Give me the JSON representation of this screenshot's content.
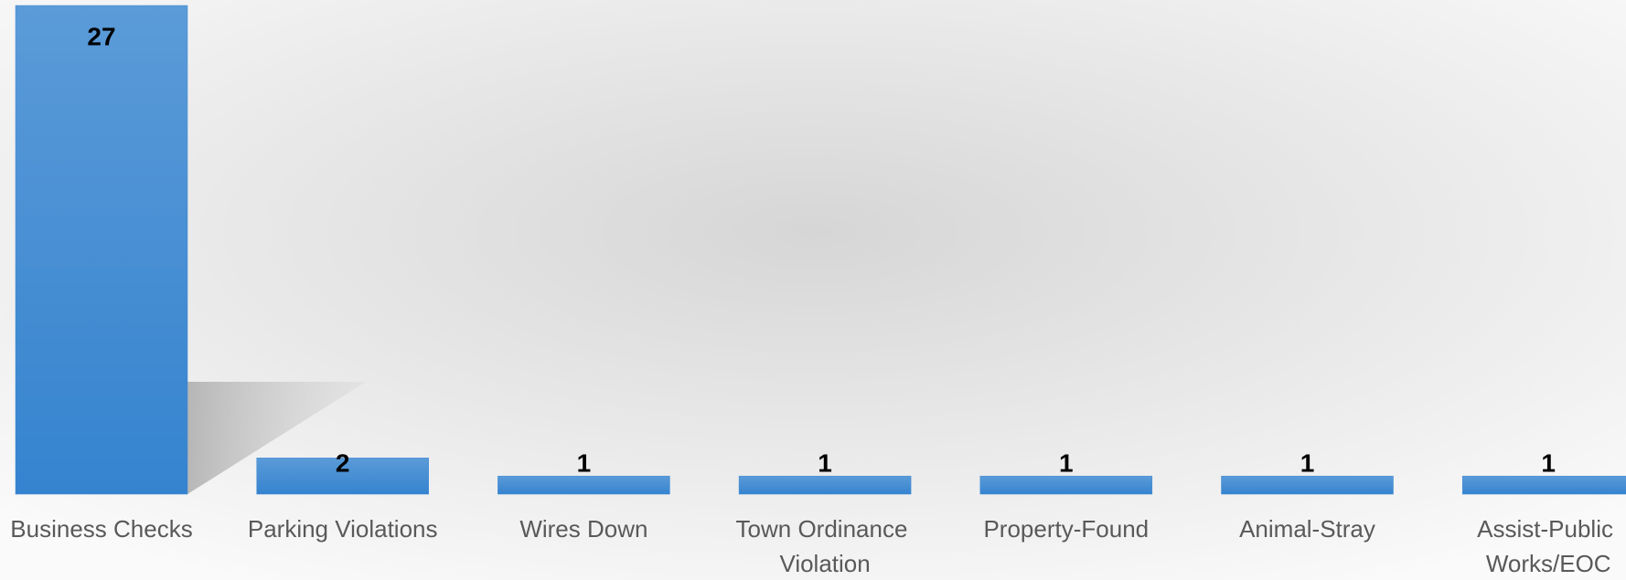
{
  "chart_data": {
    "type": "bar",
    "categories": [
      "Business Checks",
      "Parking Violations",
      "Wires Down",
      "Town Ordinance Violation",
      "Property-Found",
      "Animal-Stray",
      "Assist-Public Works/EOC"
    ],
    "values": [
      27,
      2,
      1,
      1,
      1,
      1,
      1
    ],
    "color": "#3f8ad3"
  }
}
